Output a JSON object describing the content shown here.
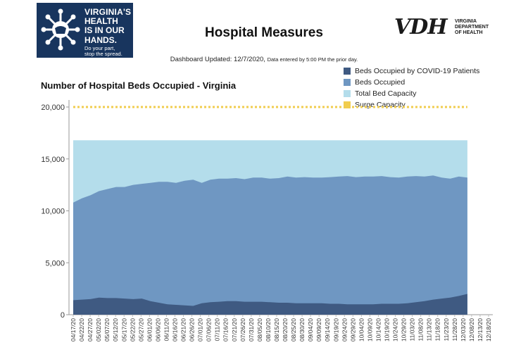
{
  "header": {
    "campaign_logo_lines": [
      "VIRGINIA'S",
      "HEALTH",
      "IS IN OUR",
      "HANDS.",
      "Do your part,",
      "stop the spread."
    ],
    "title": "Hospital Measures",
    "agency_mark": "VDH",
    "agency_name_lines": [
      "VIRGINIA",
      "DEPARTMENT",
      "OF HEALTH"
    ],
    "updated_text": "Dashboard Updated: 12/7/2020,",
    "updated_note": "Data entered by 5:00 PM the prior day."
  },
  "colors": {
    "covid": "#3f5a82",
    "occupied": "#6f97c2",
    "capacity": "#b4ddeb",
    "surge": "#f1cd4e",
    "logo_bg": "#18355e"
  },
  "chart_data": {
    "type": "area",
    "title": "Number of Hospital Beds Occupied - Virginia",
    "xlabel": "",
    "ylabel": "",
    "ylim": [
      0,
      20000
    ],
    "yticks": [
      0,
      5000,
      10000,
      15000,
      20000
    ],
    "ytick_labels": [
      "0",
      "5,000",
      "10,000",
      "15,000",
      "20,000"
    ],
    "grid": false,
    "legend_position": "top-right",
    "x_tick_labels": [
      "04/17/20",
      "04/22/20",
      "04/27/20",
      "05/02/20",
      "05/07/20",
      "05/12/20",
      "05/17/20",
      "05/22/20",
      "05/27/20",
      "06/01/20",
      "06/06/20",
      "06/11/20",
      "06/16/20",
      "06/21/20",
      "06/26/20",
      "07/01/20",
      "07/06/20",
      "07/11/20",
      "07/16/20",
      "07/21/20",
      "07/26/20",
      "07/31/20",
      "08/05/20",
      "08/10/20",
      "08/15/20",
      "08/20/20",
      "08/25/20",
      "08/30/20",
      "09/04/20",
      "09/09/20",
      "09/14/20",
      "09/19/20",
      "09/24/20",
      "09/29/20",
      "10/04/20",
      "10/09/20",
      "10/14/20",
      "10/19/20",
      "10/24/20",
      "10/29/20",
      "11/03/20",
      "11/08/20",
      "11/13/20",
      "11/18/20",
      "11/23/20",
      "11/28/20",
      "12/03/20",
      "12/08/20",
      "12/13/20",
      "12/18/20"
    ],
    "series": [
      {
        "name": "Beds Occupied by COVID-19 Patients",
        "values": [
          1400,
          1450,
          1500,
          1650,
          1600,
          1600,
          1550,
          1500,
          1550,
          1300,
          1150,
          1000,
          950,
          900,
          850,
          1100,
          1200,
          1250,
          1300,
          1300,
          1250,
          1250,
          1250,
          1200,
          1150,
          1150,
          1100,
          1100,
          1100,
          1100,
          1050,
          1050,
          1000,
          1000,
          1000,
          1000,
          1050,
          1050,
          1050,
          1100,
          1200,
          1300,
          1450,
          1550,
          1650,
          1800,
          2000
        ]
      },
      {
        "name": "Beds Occupied",
        "values": [
          10800,
          11200,
          11500,
          11900,
          12100,
          12300,
          12300,
          12500,
          12600,
          12700,
          12800,
          12800,
          12700,
          12900,
          13000,
          12700,
          13000,
          13100,
          13100,
          13150,
          13050,
          13200,
          13200,
          13100,
          13150,
          13300,
          13200,
          13250,
          13200,
          13200,
          13250,
          13300,
          13350,
          13250,
          13300,
          13300,
          13350,
          13250,
          13200,
          13300,
          13350,
          13300,
          13400,
          13200,
          13100,
          13300,
          13200
        ]
      },
      {
        "name": "Total Bed Capacity",
        "values": [
          16800,
          16800,
          16800,
          16800,
          16800,
          16800,
          16800,
          16800,
          16800,
          16800,
          16800,
          16800,
          16800,
          16800,
          16800,
          16800,
          16800,
          16800,
          16800,
          16800,
          16800,
          16800,
          16800,
          16800,
          16800,
          16800,
          16800,
          16800,
          16800,
          16800,
          16800,
          16800,
          16800,
          16800,
          16800,
          16800,
          16800,
          16800,
          16800,
          16800,
          16800,
          16800,
          16800,
          16800,
          16800,
          16800,
          16800
        ]
      },
      {
        "name": "Surge Capacity",
        "values": [
          20000,
          20000,
          20000,
          20000,
          20000,
          20000,
          20000,
          20000,
          20000,
          20000,
          20000,
          20000,
          20000,
          20000,
          20000,
          20000,
          20000,
          20000,
          20000,
          20000,
          20000,
          20000,
          20000,
          20000,
          20000,
          20000,
          20000,
          20000,
          20000,
          20000,
          20000,
          20000,
          20000,
          20000,
          20000,
          20000,
          20000,
          20000,
          20000,
          20000,
          20000,
          20000,
          20000,
          20000,
          20000,
          20000,
          20000
        ]
      }
    ]
  }
}
